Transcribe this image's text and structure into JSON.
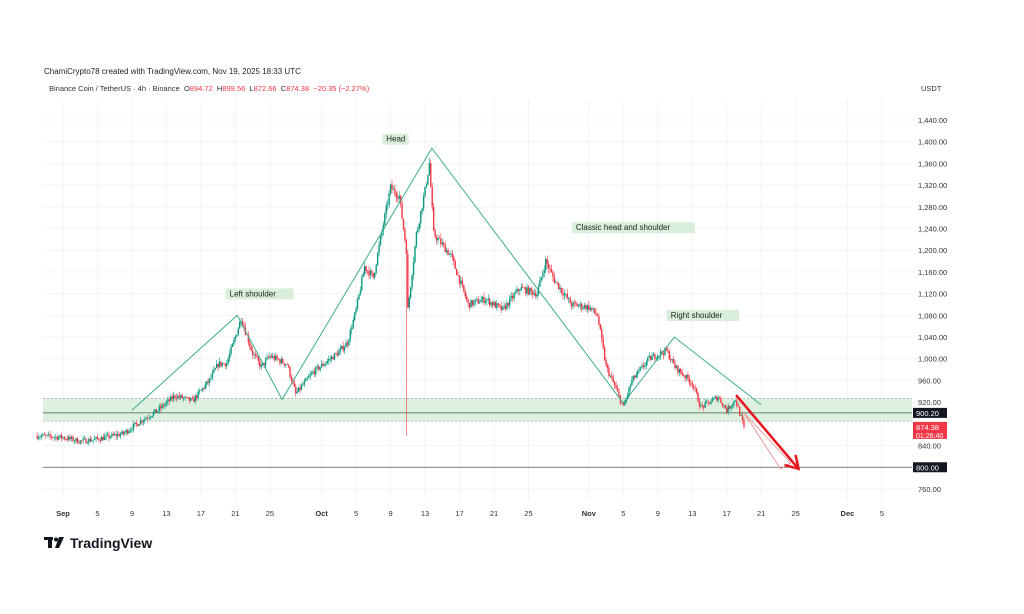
{
  "header": {
    "credit": "ChamiCrypto78 created with TradingView.com, Nov 19, 2025 18:33 UTC",
    "symbol": "Binance Coin / TetherUS · 4h · Binance",
    "open_label": "O",
    "open": "894.72",
    "high_label": "H",
    "high": "899.56",
    "low_label": "L",
    "low": "872.66",
    "close_label": "C",
    "close": "874.38",
    "change": "−20.35 (−2.27%)"
  },
  "logo": {
    "text": "TradingView"
  },
  "chart_data": {
    "type": "candlestick",
    "interval": "4h",
    "currency": "USDT",
    "ylim": [
      740,
      1460
    ],
    "y_ticks": [
      "1,440.00",
      "1,400.00",
      "1,360.00",
      "1,320.00",
      "1,280.00",
      "1,240.00",
      "1,200.00",
      "1,160.00",
      "1,120.00",
      "1,080.00",
      "1,040.00",
      "1,000.00",
      "960.00",
      "920.00",
      "840.00",
      "760.00"
    ],
    "y_tick_values": [
      1440,
      1400,
      1360,
      1320,
      1280,
      1240,
      1200,
      1160,
      1120,
      1080,
      1040,
      1000,
      960,
      920,
      840,
      760
    ],
    "x_ticks": [
      {
        "label": "Sep",
        "date": "2025-09-01"
      },
      {
        "label": "5",
        "date": "2025-09-05"
      },
      {
        "label": "9",
        "date": "2025-09-09"
      },
      {
        "label": "13",
        "date": "2025-09-13"
      },
      {
        "label": "17",
        "date": "2025-09-17"
      },
      {
        "label": "21",
        "date": "2025-09-21"
      },
      {
        "label": "25",
        "date": "2025-09-25"
      },
      {
        "label": "Oct",
        "date": "2025-10-01"
      },
      {
        "label": "5",
        "date": "2025-10-05"
      },
      {
        "label": "9",
        "date": "2025-10-09"
      },
      {
        "label": "13",
        "date": "2025-10-13"
      },
      {
        "label": "17",
        "date": "2025-10-17"
      },
      {
        "label": "21",
        "date": "2025-10-21"
      },
      {
        "label": "25",
        "date": "2025-10-25"
      },
      {
        "label": "Nov",
        "date": "2025-11-01"
      },
      {
        "label": "5",
        "date": "2025-11-05"
      },
      {
        "label": "9",
        "date": "2025-11-09"
      },
      {
        "label": "13",
        "date": "2025-11-13"
      },
      {
        "label": "17",
        "date": "2025-11-17"
      },
      {
        "label": "21",
        "date": "2025-11-21"
      },
      {
        "label": "25",
        "date": "2025-11-25"
      },
      {
        "label": "Dec",
        "date": "2025-12-01"
      },
      {
        "label": "5",
        "date": "2025-12-05"
      }
    ],
    "approx_close_path": [
      [
        "2025-08-29",
        858
      ],
      [
        "2025-09-01",
        855
      ],
      [
        "2025-09-03",
        848
      ],
      [
        "2025-09-05",
        852
      ],
      [
        "2025-09-08",
        862
      ],
      [
        "2025-09-10",
        885
      ],
      [
        "2025-09-12",
        905
      ],
      [
        "2025-09-14",
        932
      ],
      [
        "2025-09-16",
        922
      ],
      [
        "2025-09-18",
        960
      ],
      [
        "2025-09-19",
        990
      ],
      [
        "2025-09-20",
        992
      ],
      [
        "2025-09-21",
        1040
      ],
      [
        "2025-09-21T16:00",
        1075
      ],
      [
        "2025-09-23",
        1010
      ],
      [
        "2025-09-24",
        985
      ],
      [
        "2025-09-25",
        1005
      ],
      [
        "2025-09-27",
        990
      ],
      [
        "2025-09-28",
        935
      ],
      [
        "2025-09-30",
        975
      ],
      [
        "2025-10-02",
        1000
      ],
      [
        "2025-10-03",
        1012
      ],
      [
        "2025-10-04",
        1030
      ],
      [
        "2025-10-05",
        1090
      ],
      [
        "2025-10-06",
        1170
      ],
      [
        "2025-10-07",
        1150
      ],
      [
        "2025-10-08",
        1235
      ],
      [
        "2025-10-09",
        1315
      ],
      [
        "2025-10-10",
        1300
      ],
      [
        "2025-10-10T20:00",
        1200
      ],
      [
        "2025-10-11",
        1090
      ],
      [
        "2025-10-12",
        1230
      ],
      [
        "2025-10-13",
        1310
      ],
      [
        "2025-10-13T12:00",
        1360
      ],
      [
        "2025-10-14",
        1230
      ],
      [
        "2025-10-16",
        1190
      ],
      [
        "2025-10-18",
        1100
      ],
      [
        "2025-10-20",
        1110
      ],
      [
        "2025-10-22",
        1090
      ],
      [
        "2025-10-24",
        1130
      ],
      [
        "2025-10-26",
        1120
      ],
      [
        "2025-10-27",
        1180
      ],
      [
        "2025-10-28",
        1145
      ],
      [
        "2025-10-30",
        1100
      ],
      [
        "2025-11-01",
        1095
      ],
      [
        "2025-11-02",
        1080
      ],
      [
        "2025-11-03",
        985
      ],
      [
        "2025-11-04",
        950
      ],
      [
        "2025-11-05",
        910
      ],
      [
        "2025-11-06",
        960
      ],
      [
        "2025-11-08",
        1000
      ],
      [
        "2025-11-10",
        1015
      ],
      [
        "2025-11-11",
        985
      ],
      [
        "2025-11-13",
        955
      ],
      [
        "2025-11-14",
        910
      ],
      [
        "2025-11-16",
        930
      ],
      [
        "2025-11-17",
        905
      ],
      [
        "2025-11-18",
        925
      ],
      [
        "2025-11-19",
        874.38
      ]
    ],
    "flash_crash_wick": {
      "date": "2025-10-10T20:00",
      "low": 858
    },
    "support_zone": {
      "top": 927,
      "bottom": 885,
      "line": 900.2
    },
    "target_line": 800,
    "price_labels": [
      {
        "text": "900.20",
        "value": 900.2,
        "color": "#131722"
      },
      {
        "text": "874.38",
        "sub": "01:26:40",
        "value": 874.38,
        "color": "#f23645"
      },
      {
        "text": "800.00",
        "value": 800,
        "color": "#131722"
      }
    ],
    "pattern_line": [
      [
        "2025-09-09",
        905
      ],
      [
        "2025-09-21T05:00",
        1080
      ],
      [
        "2025-09-26T10:00",
        925
      ],
      [
        "2025-10-13T19:00",
        1388
      ],
      [
        "2025-11-05",
        918
      ],
      [
        "2025-11-10T22:00",
        1040
      ],
      [
        "2025-11-21",
        915
      ]
    ],
    "arrow": {
      "from": [
        "2025-11-18T02:00",
        933
      ],
      "to": [
        "2025-11-25T08:00",
        797
      ],
      "color": "#e8141e"
    },
    "annotations": [
      {
        "text": "Head",
        "date": "2025-10-08T12:00",
        "price": 1400
      },
      {
        "text": "Left shoulder",
        "date": "2025-09-20T08:00",
        "price": 1115
      },
      {
        "text": "Classic head and shoulder",
        "date": "2025-10-30T12:00",
        "price": 1237
      },
      {
        "text": "Right shoulder",
        "date": "2025-11-10T12:00",
        "price": 1075
      }
    ],
    "colors": {
      "up": "#089981",
      "down": "#f23645",
      "pattern": "#3fae8e",
      "zone": "#d6eed8"
    }
  }
}
